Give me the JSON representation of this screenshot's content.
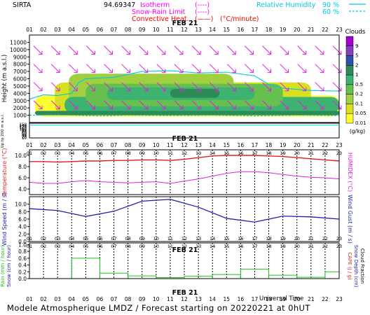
{
  "header": {
    "station": "SIRTA",
    "code": "94.69347",
    "legend": [
      {
        "label": "Isotherm",
        "swatch": "(----)",
        "color": "#ff00ff"
      },
      {
        "label": "Snow-Rain Limit",
        "swatch": "(----)",
        "color": "#ff00ff"
      },
      {
        "label": "Convective Heat.",
        "swatch": "(——)",
        "color": "#ff0000"
      }
    ],
    "unit_note": "(°C/minute)",
    "rh_legend": [
      {
        "label": "Relative Humidity",
        "value": "90 %",
        "color": "#00c8e6"
      },
      {
        "label": "",
        "value": "60 %",
        "color": "#00c8e6"
      }
    ]
  },
  "date_label": "FEB 21",
  "hours": [
    "01",
    "02",
    "03",
    "04",
    "05",
    "06",
    "07",
    "08",
    "09",
    "10",
    "11",
    "12",
    "13",
    "14",
    "15",
    "16",
    "17",
    "18",
    "19",
    "20",
    "21",
    "22",
    "23"
  ],
  "footer": {
    "title": "Modele Atmospherique LMDZ / Forecast starting on 20220221 at 0hUT",
    "time_label": "Universal Time"
  },
  "colors": {
    "wind_arrows": "#e020e0",
    "temperature": "#e02020",
    "humidex": "#e020e0",
    "wind_speed": "#2020b0",
    "rain": "#20c020",
    "isolines": "#00c8e6"
  },
  "chart_data": [
    {
      "type": "heatmap",
      "name": "clouds",
      "ylabel": "Height (m a.s.l.)",
      "ylabel2": "Up to 200 m a.s.l.",
      "yticks": [
        1000,
        2000,
        3000,
        4000,
        5000,
        6000,
        7000,
        8000,
        9000,
        10000,
        11000
      ],
      "ylim": [
        0,
        12000
      ],
      "yticks_low": [
        10,
        20,
        30,
        40,
        50,
        60,
        70,
        80,
        90,
        100,
        110,
        120,
        130,
        140,
        150
      ],
      "colorbar": {
        "title": "Clouds",
        "unit": "(g/kg)",
        "levels": [
          "9",
          "5",
          "2",
          "1",
          "0.5",
          "0.2",
          "0.1",
          "0.05",
          "0.01"
        ],
        "colors": [
          "#a000d0",
          "#8040c0",
          "#3050b0",
          "#2e8b57",
          "#3cb371",
          "#66c050",
          "#a0d040",
          "#d8e020",
          "#ffff30"
        ]
      },
      "layers": [
        {
          "x0": 1.4,
          "x1": 23,
          "y0": 800,
          "y1": 3700,
          "level": 8
        },
        {
          "x0": 2.8,
          "x1": 21,
          "y0": 1200,
          "y1": 5500,
          "level": 7
        },
        {
          "x0": 3.8,
          "x1": 15.5,
          "y0": 1400,
          "y1": 6700,
          "level": 6
        },
        {
          "x0": 3.5,
          "x1": 23,
          "y0": 1300,
          "y1": 3500,
          "level": 4
        },
        {
          "x0": 5,
          "x1": 19,
          "y0": 2200,
          "y1": 5300,
          "level": 5
        },
        {
          "x0": 6.5,
          "x1": 17,
          "y0": 3100,
          "y1": 4800,
          "level": 4
        },
        {
          "x0": 11,
          "x1": 14.5,
          "y0": 3400,
          "y1": 4600,
          "level": 3
        },
        {
          "x0": 1.4,
          "x1": 23,
          "y0": 1000,
          "y1": 1600,
          "level": 3
        }
      ]
    },
    {
      "type": "line",
      "name": "temperature",
      "ylabel": "Temperature (°C)",
      "ylabel2": "HUMIDEX (°C)",
      "yticks": [
        4.0,
        6.0,
        8.0,
        10.0
      ],
      "ylim": [
        3,
        11
      ],
      "x": [
        1,
        2,
        3,
        4,
        5,
        6,
        7,
        8,
        9,
        10,
        11,
        12,
        13,
        14,
        15,
        16,
        17,
        18,
        19,
        20,
        21,
        22,
        23
      ],
      "series": [
        {
          "name": "",
          "values": [
            8.9,
            8.9,
            8.8,
            8.9,
            9.0,
            9.0,
            9.1,
            9.1,
            9.2,
            9.2,
            9.1,
            9.3,
            9.6,
            9.9,
            10.0,
            10.0,
            10.0,
            9.9,
            9.8,
            9.6,
            9.4,
            9.2,
            9.0
          ]
        },
        {
          "name": "",
          "values": [
            5.2,
            5.0,
            5.0,
            5.3,
            5.5,
            5.3,
            5.2,
            5.1,
            5.2,
            5.3,
            5.0,
            5.4,
            5.8,
            6.3,
            6.8,
            7.1,
            7.1,
            6.9,
            6.6,
            6.3,
            6.1,
            6.0,
            5.8
          ]
        }
      ]
    },
    {
      "type": "line",
      "name": "wind",
      "ylabel": "Wind Speed (m / s)",
      "ylabel2": "Wind Gust (m / s)",
      "yticks": [
        0.0,
        2.0,
        4.0,
        6.0,
        8.0,
        10.0
      ],
      "ylim": [
        0,
        12
      ],
      "x": [
        1,
        3,
        5,
        7,
        9,
        11,
        13,
        15,
        17,
        19,
        21,
        23
      ],
      "series": [
        {
          "name": "",
          "values": [
            8.8,
            8.3,
            6.7,
            8.1,
            10.8,
            11.3,
            9.2,
            6.2,
            5.2,
            6.8,
            6.6,
            6.0
          ]
        }
      ]
    },
    {
      "type": "bar",
      "name": "precipitation",
      "ylabel": "Rain (mm / hour)",
      "ylabel_b": "Snow (cm / hour)",
      "ylabel2": "CAPE (J / g)",
      "ylabel2_b": "Snow Depth (cm)",
      "ylabel2_c": "Cloud Fraction",
      "yticks": [
        0.0,
        0.2,
        0.4,
        0.6,
        0.8,
        1.0
      ],
      "ylim": [
        0,
        1.05
      ],
      "bins": [
        {
          "x0": 1,
          "x1": 4,
          "value": 0.0
        },
        {
          "x0": 4,
          "x1": 6,
          "value": 0.6
        },
        {
          "x0": 6,
          "x1": 8,
          "value": 0.16
        },
        {
          "x0": 8,
          "x1": 10,
          "value": 0.08
        },
        {
          "x0": 10,
          "x1": 12,
          "value": 0.03
        },
        {
          "x0": 12,
          "x1": 14,
          "value": 0.07
        },
        {
          "x0": 14,
          "x1": 16,
          "value": 0.12
        },
        {
          "x0": 16,
          "x1": 18,
          "value": 0.28
        },
        {
          "x0": 18,
          "x1": 20,
          "value": 0.1
        },
        {
          "x0": 20,
          "x1": 22,
          "value": 0.04
        },
        {
          "x0": 22,
          "x1": 23,
          "value": 0.2
        }
      ]
    }
  ]
}
